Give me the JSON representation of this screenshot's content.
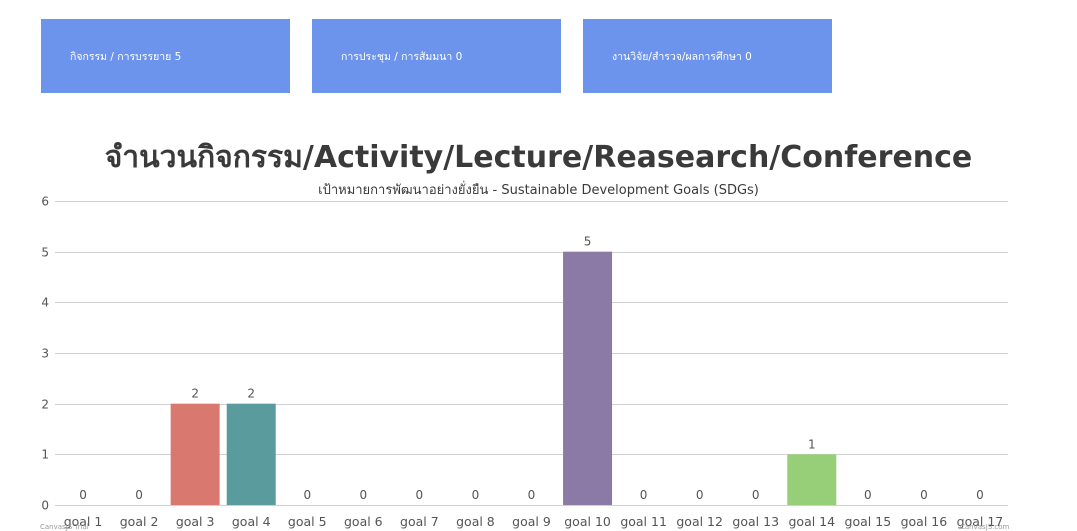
{
  "stats": [
    {
      "label": "กิจกรรม / การบรรยาย 5"
    },
    {
      "label": "การประชุม / การสัมมนา 0"
    },
    {
      "label": "งานวิจัย/สำรวจ/ผลการศึกษา 0"
    }
  ],
  "chart_data": {
    "type": "bar",
    "title": "จำนวนกิจกรรม/Activity/Lecture/Reasearch/Conference",
    "subtitle": "เป้าหมายการพัฒนาอย่างยั่งยืน - Sustainable Development Goals (SDGs)",
    "xlabel": "",
    "ylabel": "",
    "ylim": [
      0,
      6
    ],
    "yticks": [
      0,
      1,
      2,
      3,
      4,
      5,
      6
    ],
    "grid": true,
    "legend": "none",
    "categories": [
      "goal 1",
      "goal 2",
      "goal 3",
      "goal 4",
      "goal 5",
      "goal 6",
      "goal 7",
      "goal 8",
      "goal 9",
      "goal 10",
      "goal 11",
      "goal 12",
      "goal 13",
      "goal 14",
      "goal 15",
      "goal 16",
      "goal 17"
    ],
    "values": [
      0,
      0,
      2,
      2,
      0,
      0,
      0,
      0,
      0,
      5,
      0,
      0,
      0,
      1,
      0,
      0,
      0
    ],
    "colors": [
      "#4f81bc",
      "#c0504e",
      "#d9786e",
      "#5a9b9e",
      "#8064a2",
      "#4bacc6",
      "#f79646",
      "#2c4d75",
      "#772c2a",
      "#8c7aa6",
      "#4bacc6",
      "#f79646",
      "#2c4d75",
      "#96cf78",
      "#c0504e",
      "#9bbb59",
      "#8064a2"
    ]
  },
  "credits": {
    "left": "CanvasJS Trial",
    "right": "CanvasJS.com"
  }
}
